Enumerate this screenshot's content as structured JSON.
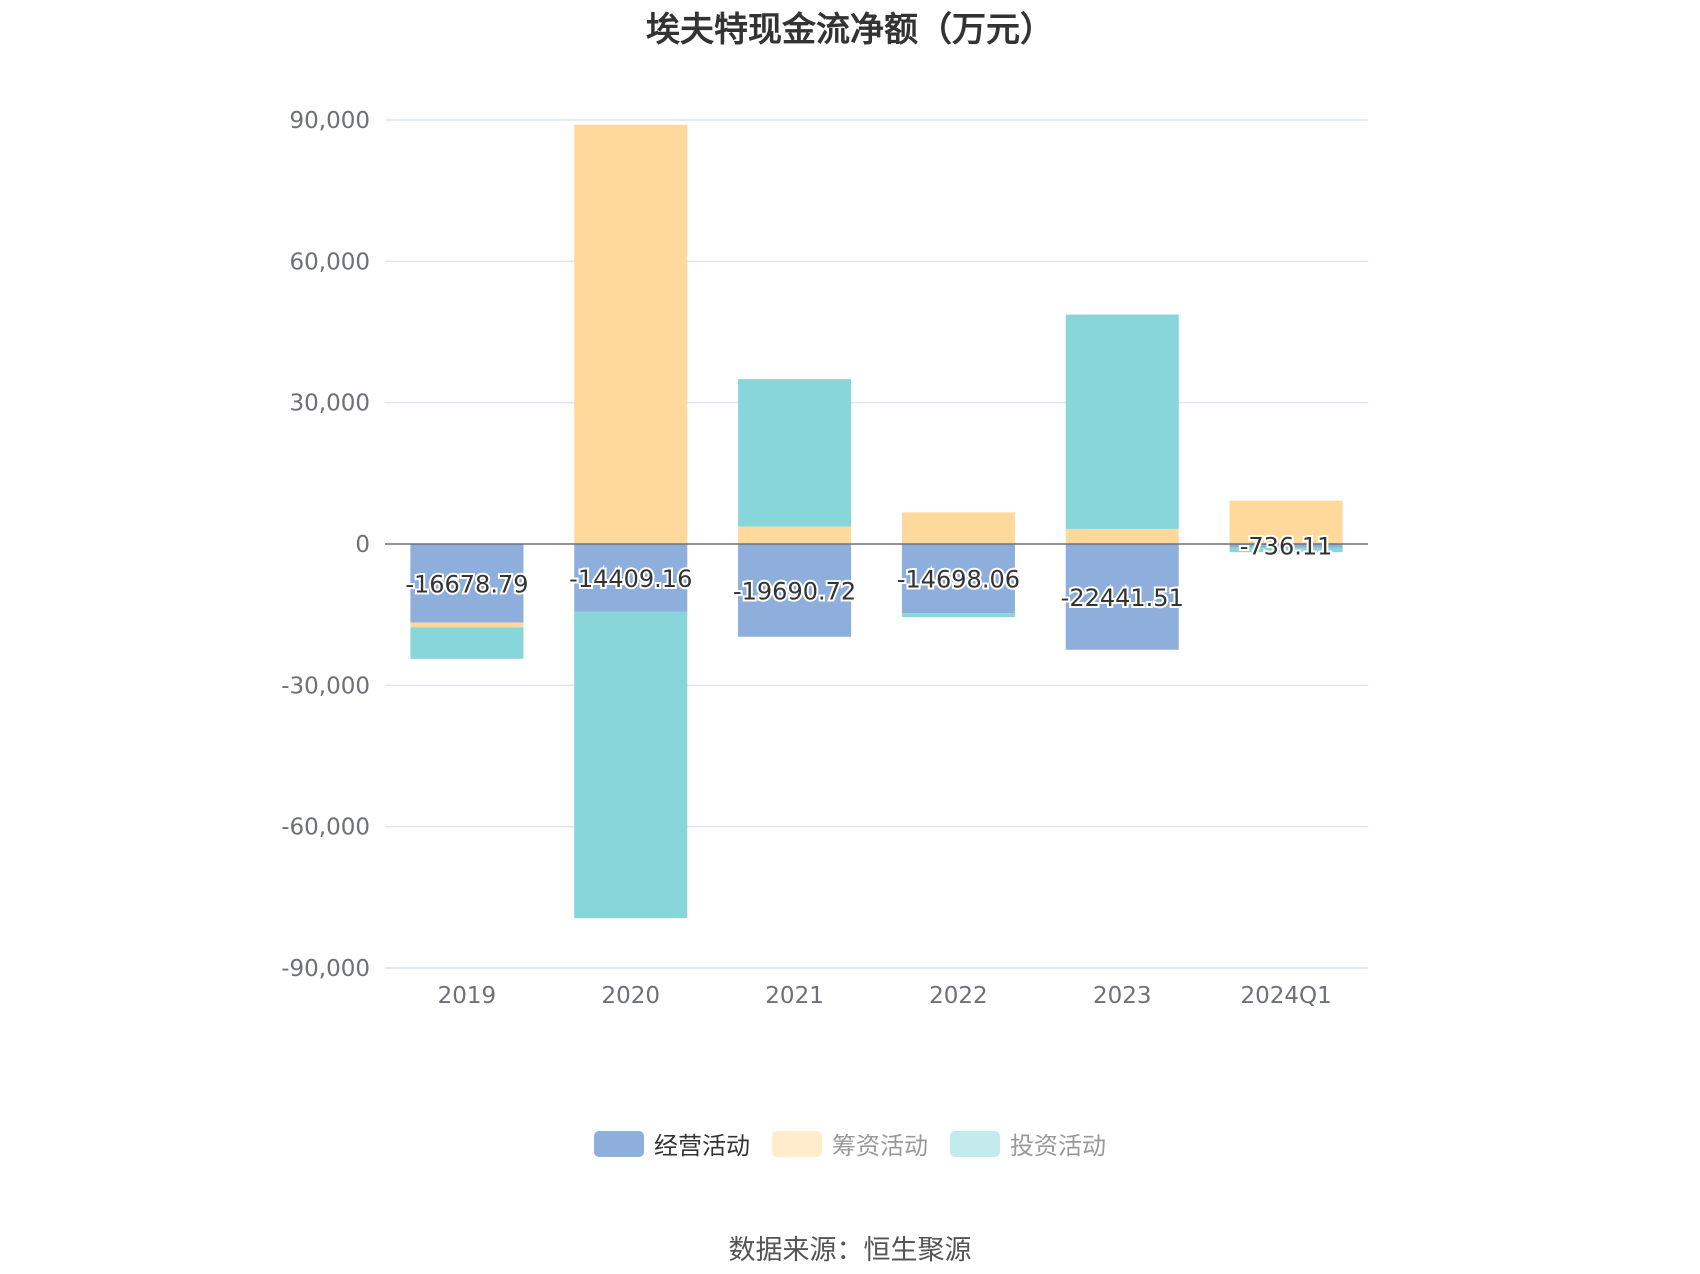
{
  "chart_data": {
    "type": "bar",
    "stacked": true,
    "title": "埃夫特现金流净额（万元）",
    "categories": [
      "2019",
      "2020",
      "2021",
      "2022",
      "2023",
      "2024Q1"
    ],
    "ylim": [
      -90000,
      90000
    ],
    "yticks": [
      90000,
      60000,
      30000,
      0,
      -30000,
      -60000,
      -90000
    ],
    "ytick_labels": [
      "90,000",
      "60,000",
      "30,000",
      "0",
      "-30,000",
      "-60,000",
      "-90,000"
    ],
    "grid": true,
    "legend_position": "bottom-center",
    "series": [
      {
        "name": "经营活动",
        "color": "#8eaedb",
        "values": [
          -16678.79,
          -14409.16,
          -19690.72,
          -14698.06,
          -22441.51,
          -736.11
        ],
        "labels": [
          "-16678.79",
          "-14409.16",
          "-19690.72",
          "-14698.06",
          "-22441.51",
          "-736.11"
        ]
      },
      {
        "name": "筹资活动",
        "color": "#fed99b",
        "values": [
          -1000,
          89000,
          3700,
          6700,
          3200,
          9200
        ]
      },
      {
        "name": "投资活动",
        "color": "#88d6d9",
        "values": [
          -6700,
          -65000,
          31300,
          -800,
          45500,
          -1000
        ]
      }
    ],
    "source": "数据来源：恒生聚源"
  }
}
